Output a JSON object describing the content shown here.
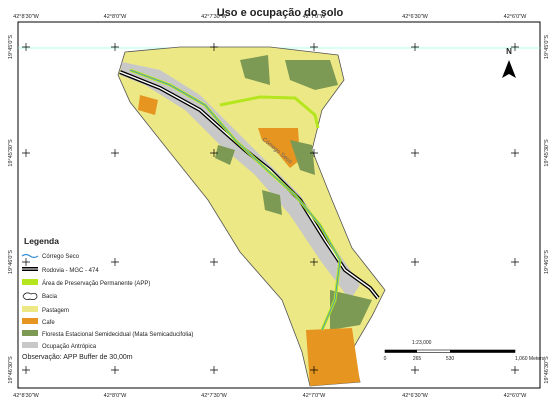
{
  "title": "Uso e ocupação do solo",
  "top_labels": [
    "42°8'30\"W",
    "42°8'0\"W",
    "42°7'30\"W",
    "42°7'0\"W",
    "42°6'30\"W",
    "42°6'0\"W"
  ],
  "bottom_labels": [
    "42°8'30\"W",
    "42°8'0\"W",
    "42°7'30\"W",
    "42°7'0\"W",
    "42°6'30\"W",
    "42°6'0\"W"
  ],
  "left_labels": [
    "19°45'0\"S",
    "19°45'30\"S",
    "19°46'0\"S",
    "19°46'30\"S"
  ],
  "right_labels": [
    "19°45'0\"S",
    "19°45'30\"S",
    "19°46'0\"S",
    "19°46'30\"S"
  ],
  "north": "N",
  "stream_label": "Córrego Seco",
  "legend": {
    "title": "Legenda",
    "items": [
      "Córrego Seco",
      "Rodovia - MGC - 474",
      "Área de Preservação Permanente (APP)",
      "Bacia",
      "Pastagem",
      "Cafe",
      "Floresta Estacional Semidecidual (Mata Semicaducifolia)",
      "Ocupação Antrópica"
    ],
    "note": "Observação: APP Buffer de 30,00m"
  },
  "scale": {
    "ratio": "1:23,000",
    "ticks": [
      "0",
      "265",
      "530",
      "1,060 Meters"
    ]
  }
}
